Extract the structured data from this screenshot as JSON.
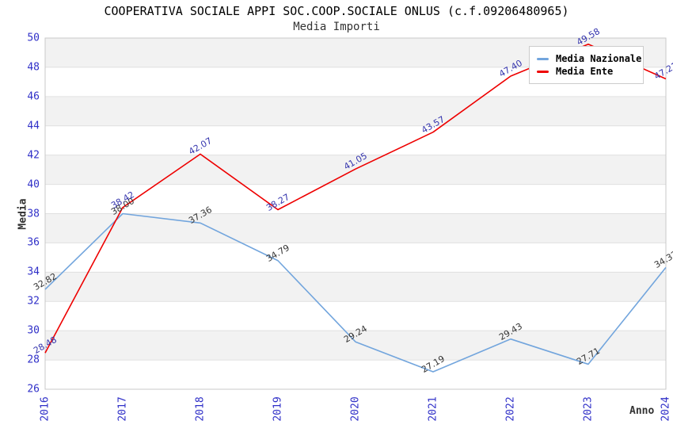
{
  "chart_data": {
    "type": "line",
    "title": "COOPERATIVA SOCIALE APPI SOC.COOP.SOCIALE ONLUS (c.f.09206480965)",
    "subtitle": "Media Importi",
    "xlabel": "Anno",
    "ylabel": "Media",
    "x": [
      "2016",
      "2017",
      "2018",
      "2019",
      "2020",
      "2021",
      "2022",
      "2023",
      "2024"
    ],
    "ylim": [
      26,
      50
    ],
    "ytick_step": 2,
    "grid": "horizontal gridlines with alternating shaded bands",
    "legend_position": "top-right-inside",
    "band_color": "#f2f2f2",
    "grid_color": "#e0e0e0",
    "plot_border_color": "#c9c9c9",
    "axis_tick_color": "#3030c8",
    "series": [
      {
        "name": "Media Nazionale",
        "color": "#72a5dd",
        "label_color": "#333333",
        "values": [
          32.82,
          38.0,
          37.36,
          34.79,
          29.24,
          27.19,
          29.43,
          27.71,
          34.32
        ]
      },
      {
        "name": "Media Ente",
        "color": "#ee0000",
        "label_color": "#3333ad",
        "values": [
          28.48,
          38.42,
          42.07,
          38.27,
          41.05,
          43.57,
          47.4,
          49.58,
          47.21
        ]
      }
    ]
  }
}
